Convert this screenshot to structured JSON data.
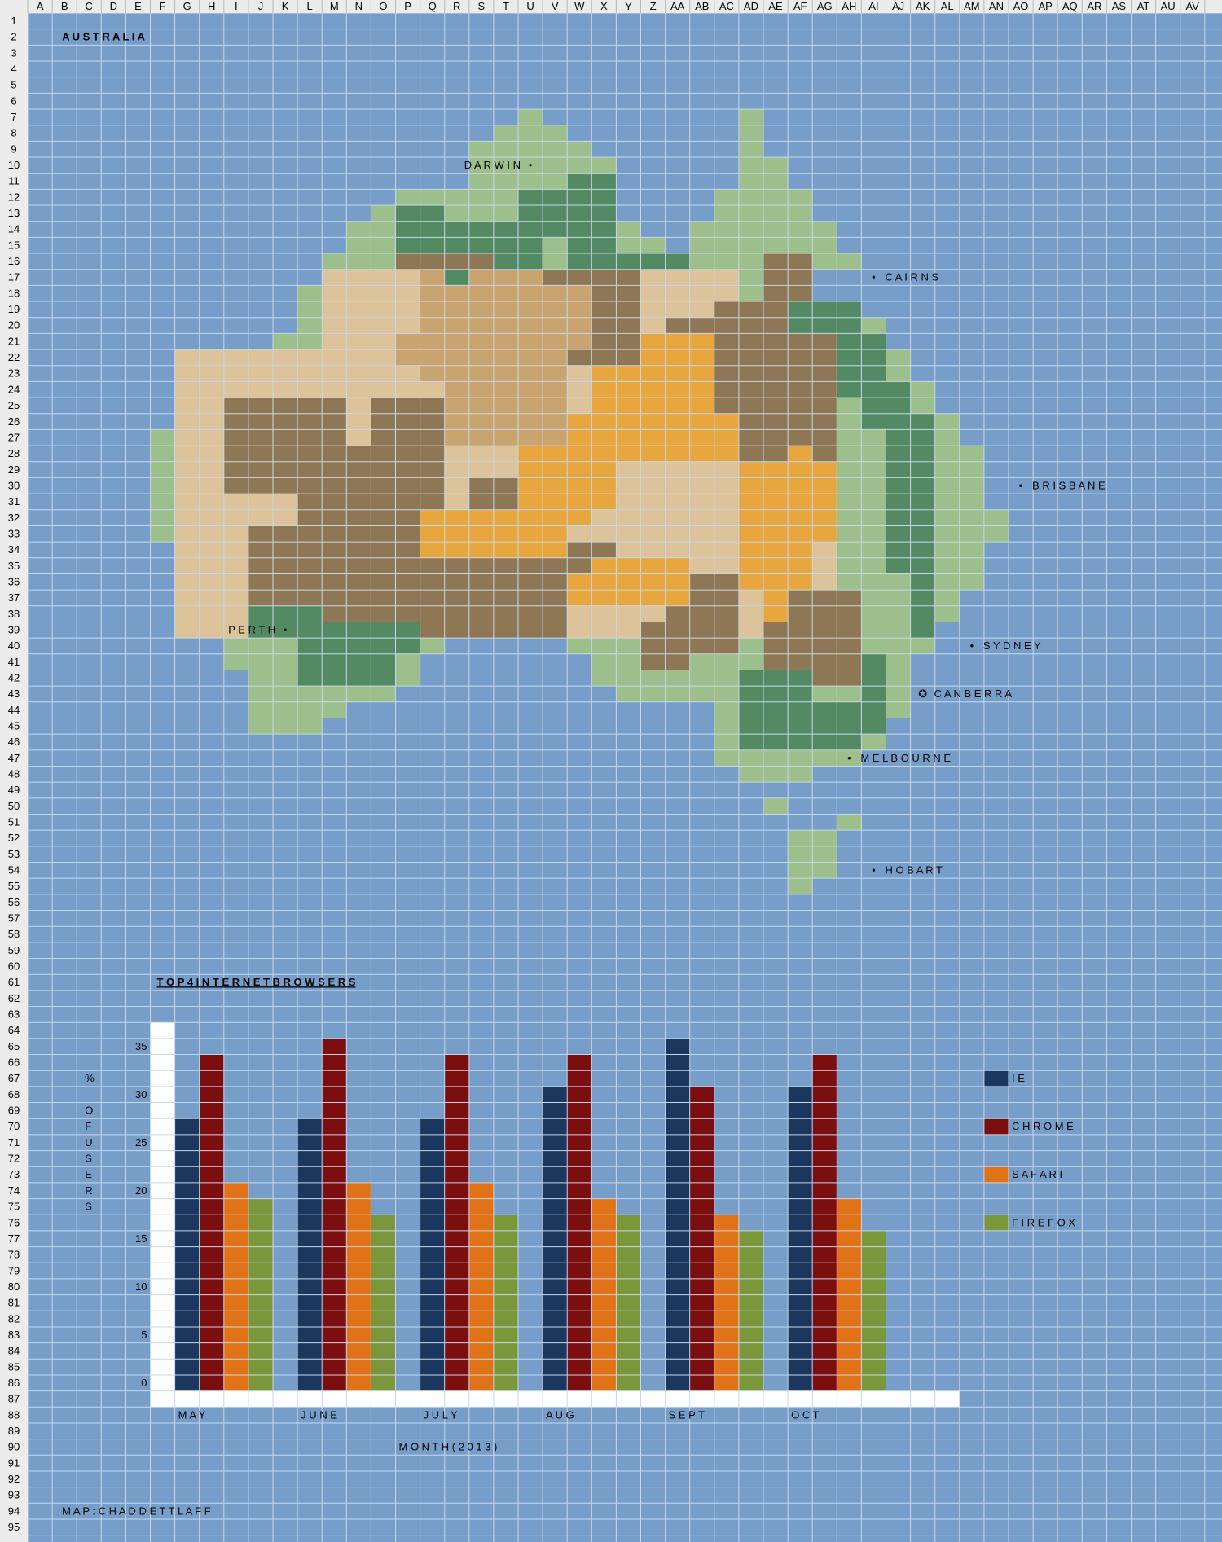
{
  "spreadsheet": {
    "columns": [
      "A",
      "B",
      "C",
      "D",
      "E",
      "F",
      "G",
      "H",
      "I",
      "J",
      "K",
      "L",
      "M",
      "N",
      "O",
      "P",
      "Q",
      "R",
      "S",
      "T",
      "U",
      "V",
      "W",
      "X",
      "Y",
      "Z",
      "AA",
      "AB",
      "AC",
      "AD",
      "AE",
      "AF",
      "AG",
      "AH",
      "AI",
      "AJ",
      "AK",
      "AL",
      "AM",
      "AN",
      "AO",
      "AP",
      "AQ",
      "AR",
      "AS",
      "AT",
      "AU",
      "AV"
    ],
    "row_count": 95,
    "colors": {
      "water": "#779ec9",
      "grid": "#c9d7ea",
      "header_bg": "#ececec",
      "deep_green": "#538a63",
      "light_green": "#9dbf8c",
      "brown": "#8e7754",
      "sand": "#dcc399",
      "tan": "#c9a46e",
      "orange": "#e8a63e",
      "white": "#ffffff"
    }
  },
  "map": {
    "title": "A U S T R A L I A",
    "credit": "M A P :   C H A D     D E T T L A F F",
    "cities": [
      {
        "name": "D A R W I N",
        "marker": "•",
        "side": "left",
        "row": 10,
        "col": 20
      },
      {
        "name": "C A I R N S",
        "marker": "•",
        "side": "right",
        "row": 17,
        "col": 34
      },
      {
        "name": "B R I S B A N E",
        "marker": "•",
        "side": "right",
        "row": 30,
        "col": 40
      },
      {
        "name": "P E R T H",
        "marker": "•",
        "side": "left",
        "row": 39,
        "col": 10
      },
      {
        "name": "S Y D N E Y",
        "marker": "•",
        "side": "right",
        "row": 40,
        "col": 38
      },
      {
        "name": "C A N B E R R A",
        "marker": "✪",
        "side": "right",
        "row": 43,
        "col": 36
      },
      {
        "name": "M E L B O U R N E",
        "marker": "•",
        "side": "right",
        "row": 47,
        "col": 33
      },
      {
        "name": "H O B A R T",
        "marker": "•",
        "side": "right",
        "row": 54,
        "col": 34
      }
    ]
  },
  "chart_data": {
    "type": "bar",
    "title": "T O P    4    I N T E R N E T    B R O W S E R S",
    "ylabel": [
      "%",
      "O",
      "F",
      "U",
      "S",
      "E",
      "R",
      "S"
    ],
    "xlabel": "M O N T H   ( 2 0 1 3 )",
    "categories": [
      "M A Y",
      "J U N E",
      "J U L Y",
      "A U G",
      "S E P T",
      "O C T"
    ],
    "yticks": [
      "0",
      "5",
      "10",
      "15",
      "20",
      "25",
      "30",
      "35"
    ],
    "ylim": [
      0,
      35
    ],
    "series": [
      {
        "name": "I E",
        "color": "#1b375d",
        "values": [
          29,
          28,
          29,
          31,
          36,
          31
        ]
      },
      {
        "name": "C H R O M E",
        "color": "#7b0e0e",
        "values": [
          35,
          36,
          35,
          35,
          31,
          35
        ]
      },
      {
        "name": "S A F A R I",
        "color": "#e07317",
        "values": [
          21,
          21,
          21,
          20,
          18,
          20
        ]
      },
      {
        "name": "F I R E F O X",
        "color": "#7a973b",
        "values": [
          20,
          18,
          18,
          18,
          17,
          17
        ]
      }
    ],
    "legend_position": "right"
  }
}
